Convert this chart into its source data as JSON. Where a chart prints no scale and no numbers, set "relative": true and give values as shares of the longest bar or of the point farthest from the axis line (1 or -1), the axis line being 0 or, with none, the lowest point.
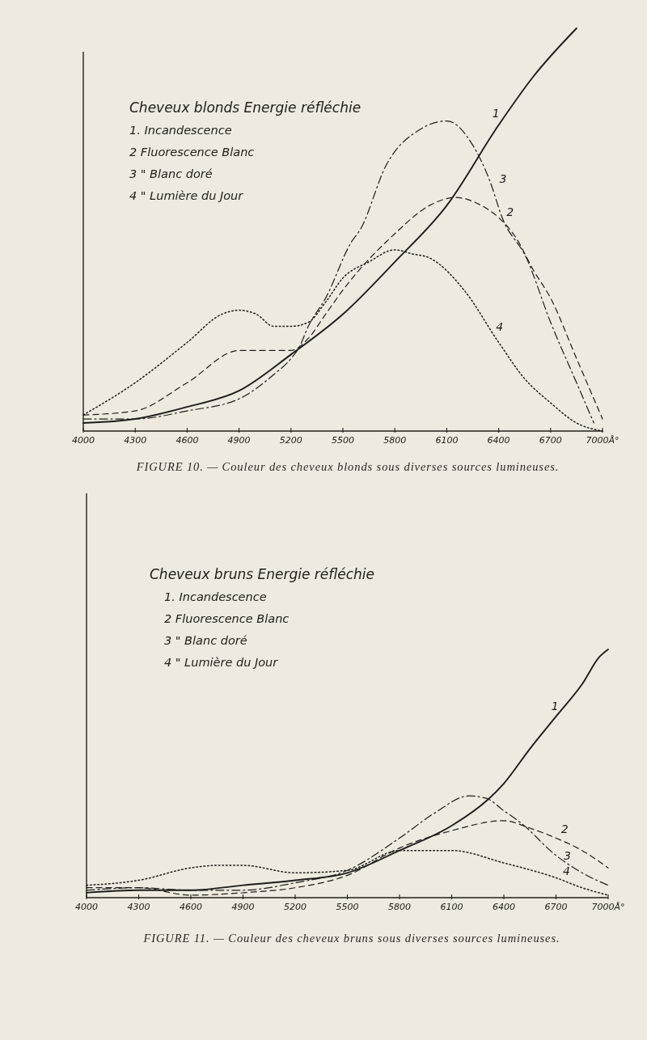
{
  "chart_data": [
    {
      "type": "line",
      "relative": true,
      "title": "FIGURE 10. — Couleur des cheveux blonds sous diverses sources lumineuses.",
      "legend_title": "Cheveux blonds Energie réfléchie",
      "xlim": [
        4000,
        7000
      ],
      "xticks": [
        4000,
        4300,
        4600,
        4900,
        5200,
        5500,
        5800,
        6100,
        6400,
        6700,
        {
          "value": 7000,
          "label": "7000Å°"
        }
      ],
      "series": [
        {
          "name": "1",
          "color": "#1e1c19",
          "line_style": "solid",
          "x": [
            4000,
            4300,
            4600,
            4900,
            5200,
            5500,
            5800,
            6100,
            6400,
            6600,
            6850
          ],
          "values": [
            0.02,
            0.03,
            0.06,
            0.1,
            0.19,
            0.29,
            0.42,
            0.56,
            0.76,
            0.88,
            1
          ]
        },
        {
          "name": "2",
          "color": "#1e1c19",
          "line_style": "dashed",
          "x": [
            4000,
            4300,
            4600,
            4900,
            5050,
            5200,
            5300,
            5400,
            5500,
            5800,
            6000,
            6150,
            6300,
            6400,
            6500,
            6600,
            6700,
            6850,
            7000
          ],
          "values": [
            0.04,
            0.05,
            0.12,
            0.2,
            0.2,
            0.2,
            0.23,
            0.29,
            0.35,
            0.49,
            0.56,
            0.58,
            0.56,
            0.53,
            0.48,
            0.4,
            0.33,
            0.18,
            0.03
          ]
        },
        {
          "name": "3",
          "color": "#1e1c19",
          "line_style": "dashdot",
          "x": [
            4000,
            4300,
            4600,
            4900,
            5100,
            5200,
            5250,
            5300,
            5400,
            5550,
            5600,
            5750,
            5950,
            6100,
            6250,
            6350,
            6420,
            6560,
            6700,
            6850,
            6950
          ],
          "values": [
            0.03,
            0.03,
            0.05,
            0.08,
            0.14,
            0.18,
            0.21,
            0.26,
            0.33,
            0.47,
            0.5,
            0.66,
            0.75,
            0.77,
            0.71,
            0.62,
            0.53,
            0.43,
            0.27,
            0.12,
            0.02
          ]
        },
        {
          "name": "4",
          "color": "#1e1c19",
          "line_style": "dotted",
          "x": [
            4000,
            4300,
            4600,
            4800,
            4900,
            5000,
            5100,
            5200,
            5300,
            5400,
            5500,
            5650,
            5800,
            5900,
            6000,
            6200,
            6400,
            6550,
            6700,
            6850,
            7000
          ],
          "values": [
            0.04,
            0.12,
            0.22,
            0.29,
            0.3,
            0.29,
            0.26,
            0.26,
            0.27,
            0.32,
            0.38,
            0.42,
            0.45,
            0.44,
            0.43,
            0.35,
            0.22,
            0.13,
            0.07,
            0.02,
            0
          ]
        }
      ],
      "annotations": [
        "1. Incandescence",
        "2 Fluorescence Blanc",
        "3 \" Blanc doré",
        "4 \" Lumière du Jour"
      ]
    },
    {
      "type": "line",
      "relative": true,
      "title": "FIGURE 11. — Couleur des cheveux bruns sous diverses sources lumineuses.",
      "legend_title": "Cheveux bruns Energie réfléchie",
      "xlim": [
        4000,
        7000
      ],
      "xticks": [
        4000,
        4300,
        4600,
        4900,
        5200,
        5500,
        5800,
        6100,
        6400,
        6700,
        {
          "value": 7000,
          "label": "7000Å°"
        }
      ],
      "series": [
        {
          "name": "1",
          "color": "#1e1c19",
          "line_style": "solid",
          "x": [
            4000,
            4300,
            4600,
            4900,
            5200,
            5500,
            5800,
            6100,
            6300,
            6400,
            6550,
            6700,
            6850,
            6950,
            7000
          ],
          "values": [
            0.02,
            0.03,
            0.03,
            0.05,
            0.07,
            0.1,
            0.19,
            0.29,
            0.39,
            0.46,
            0.6,
            0.73,
            0.86,
            0.97,
            1
          ]
        },
        {
          "name": "2",
          "color": "#1e1c19",
          "line_style": "dashed",
          "x": [
            4000,
            4300,
            4600,
            4900,
            5200,
            5500,
            5800,
            6100,
            6400,
            6550,
            6700,
            6850,
            7000
          ],
          "values": [
            0.04,
            0.04,
            0.01,
            0.02,
            0.04,
            0.09,
            0.2,
            0.27,
            0.31,
            0.28,
            0.24,
            0.19,
            0.12
          ]
        },
        {
          "name": "3",
          "color": "#1e1c19",
          "line_style": "dashdot",
          "x": [
            4000,
            4300,
            4600,
            4900,
            5200,
            5500,
            5800,
            6000,
            6200,
            6300,
            6400,
            6500,
            6700,
            6850,
            7000
          ],
          "values": [
            0.03,
            0.04,
            0.03,
            0.03,
            0.06,
            0.11,
            0.24,
            0.34,
            0.41,
            0.4,
            0.35,
            0.3,
            0.17,
            0.1,
            0.05
          ]
        },
        {
          "name": "4",
          "color": "#1e1c19",
          "line_style": "dotted",
          "x": [
            4000,
            4300,
            4600,
            4750,
            4900,
            5200,
            5500,
            5800,
            6100,
            6400,
            6700,
            6850,
            7000
          ],
          "values": [
            0.05,
            0.07,
            0.12,
            0.13,
            0.13,
            0.1,
            0.11,
            0.19,
            0.19,
            0.14,
            0.08,
            0.04,
            0.01
          ]
        }
      ],
      "annotations": [
        "1. Incandescence",
        "2 Fluorescence Blanc",
        "3 \" Blanc doré",
        "4 \" Lumière du Jour"
      ]
    }
  ]
}
